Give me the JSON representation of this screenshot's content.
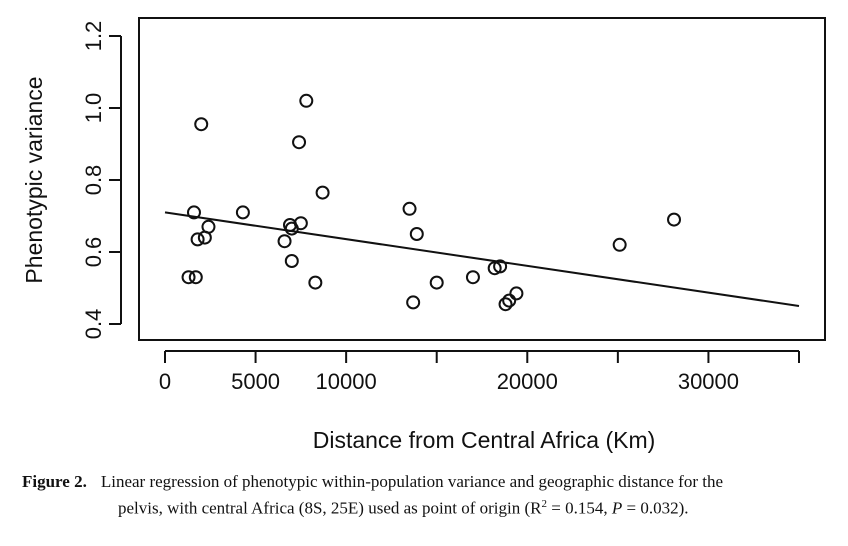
{
  "chart_data": {
    "type": "scatter",
    "xlabel": "Distance from Central Africa (Km)",
    "ylabel": "Phenotypic variance",
    "xlim": [
      0,
      35000
    ],
    "ylim": [
      0.4,
      1.2
    ],
    "xticks": [
      0,
      5000,
      10000,
      20000,
      30000
    ],
    "xtick_labels": [
      "0",
      "5000",
      "10000",
      "20000",
      "30000"
    ],
    "xtick_marks": [
      0,
      5000,
      10000,
      15000,
      20000,
      25000,
      30000,
      35000
    ],
    "yticks": [
      0.4,
      0.6,
      0.8,
      1.0,
      1.2
    ],
    "ytick_labels": [
      "0.4",
      "0.6",
      "0.8",
      "1.0",
      "1.2"
    ],
    "grid": false,
    "legend": "none",
    "points": [
      {
        "x": 1300,
        "y": 0.53
      },
      {
        "x": 1700,
        "y": 0.53
      },
      {
        "x": 1600,
        "y": 0.71
      },
      {
        "x": 1800,
        "y": 0.635
      },
      {
        "x": 2200,
        "y": 0.64
      },
      {
        "x": 2000,
        "y": 0.955
      },
      {
        "x": 2400,
        "y": 0.67
      },
      {
        "x": 4300,
        "y": 0.71
      },
      {
        "x": 6600,
        "y": 0.63
      },
      {
        "x": 6900,
        "y": 0.675
      },
      {
        "x": 7000,
        "y": 0.665
      },
      {
        "x": 7000,
        "y": 0.575
      },
      {
        "x": 7400,
        "y": 0.905
      },
      {
        "x": 7500,
        "y": 0.68
      },
      {
        "x": 7800,
        "y": 1.02
      },
      {
        "x": 8300,
        "y": 0.515
      },
      {
        "x": 8700,
        "y": 0.765
      },
      {
        "x": 13500,
        "y": 0.72
      },
      {
        "x": 13700,
        "y": 0.46
      },
      {
        "x": 13900,
        "y": 0.65
      },
      {
        "x": 15000,
        "y": 0.515
      },
      {
        "x": 17000,
        "y": 0.53
      },
      {
        "x": 18200,
        "y": 0.555
      },
      {
        "x": 18500,
        "y": 0.56
      },
      {
        "x": 18800,
        "y": 0.455
      },
      {
        "x": 19000,
        "y": 0.465
      },
      {
        "x": 19400,
        "y": 0.485
      },
      {
        "x": 25100,
        "y": 0.62
      },
      {
        "x": 28100,
        "y": 0.69
      }
    ],
    "regression_line": {
      "x": [
        0,
        35000
      ],
      "y": [
        0.71,
        0.45
      ]
    }
  },
  "caption": {
    "label": "Figure 2.",
    "line1": "Linear regression of phenotypic within-population variance and geographic distance for the",
    "line2_a": "pelvis, with central Africa (8S, 25E) used as point of origin (R",
    "line2_sup": "2",
    "line2_b": " = 0.154, ",
    "line2_p": "P",
    "line2_c": " = 0.032)."
  }
}
